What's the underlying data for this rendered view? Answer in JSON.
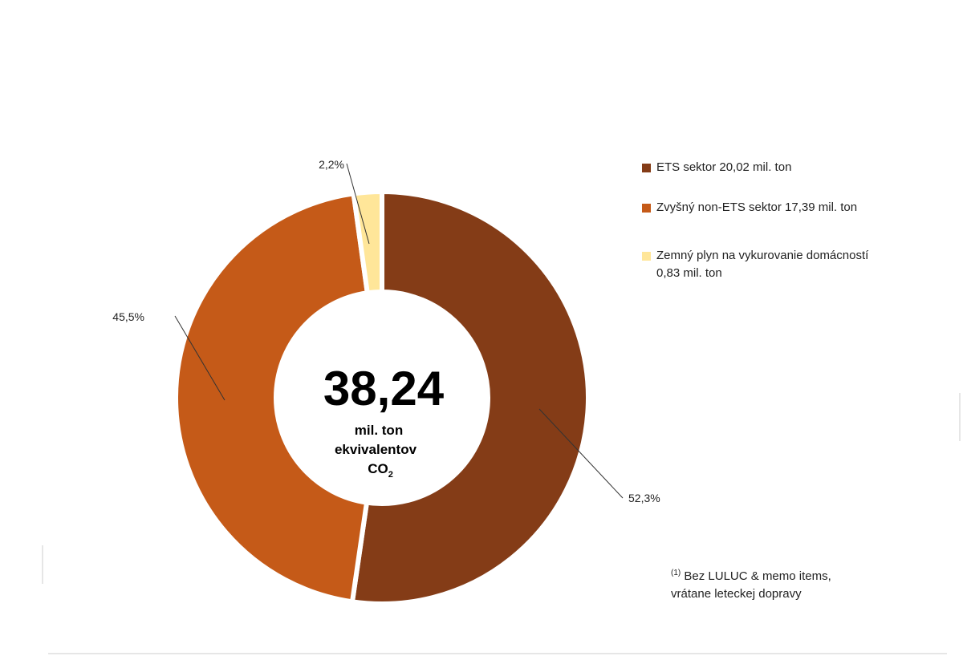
{
  "chart_data": {
    "type": "pie",
    "subtype": "donut",
    "total": {
      "value": "38,24",
      "unit_lines": [
        "mil. ton",
        "ekvivalentov"
      ],
      "unit_co2": "CO",
      "unit_co2_sub": "2"
    },
    "slices": [
      {
        "name": "ETS sektor 20,02 mil. ton",
        "value": 52.3,
        "label": "52,3%",
        "color": "#843C17"
      },
      {
        "name": "Zvyšný non-ETS sektor 17,39 mil. ton",
        "value": 45.5,
        "label": "45,5%",
        "color": "#C55A18"
      },
      {
        "name": "Zemný plyn na vykurovanie domácností\n0,83 mil. ton",
        "value": 2.2,
        "label": "2,2%",
        "color": "#FFE699"
      }
    ],
    "legend_position": "right",
    "footnote": {
      "marker": "(1)",
      "text": " Bez LULUC & memo items,\nvrátane leteckej dopravy"
    }
  }
}
